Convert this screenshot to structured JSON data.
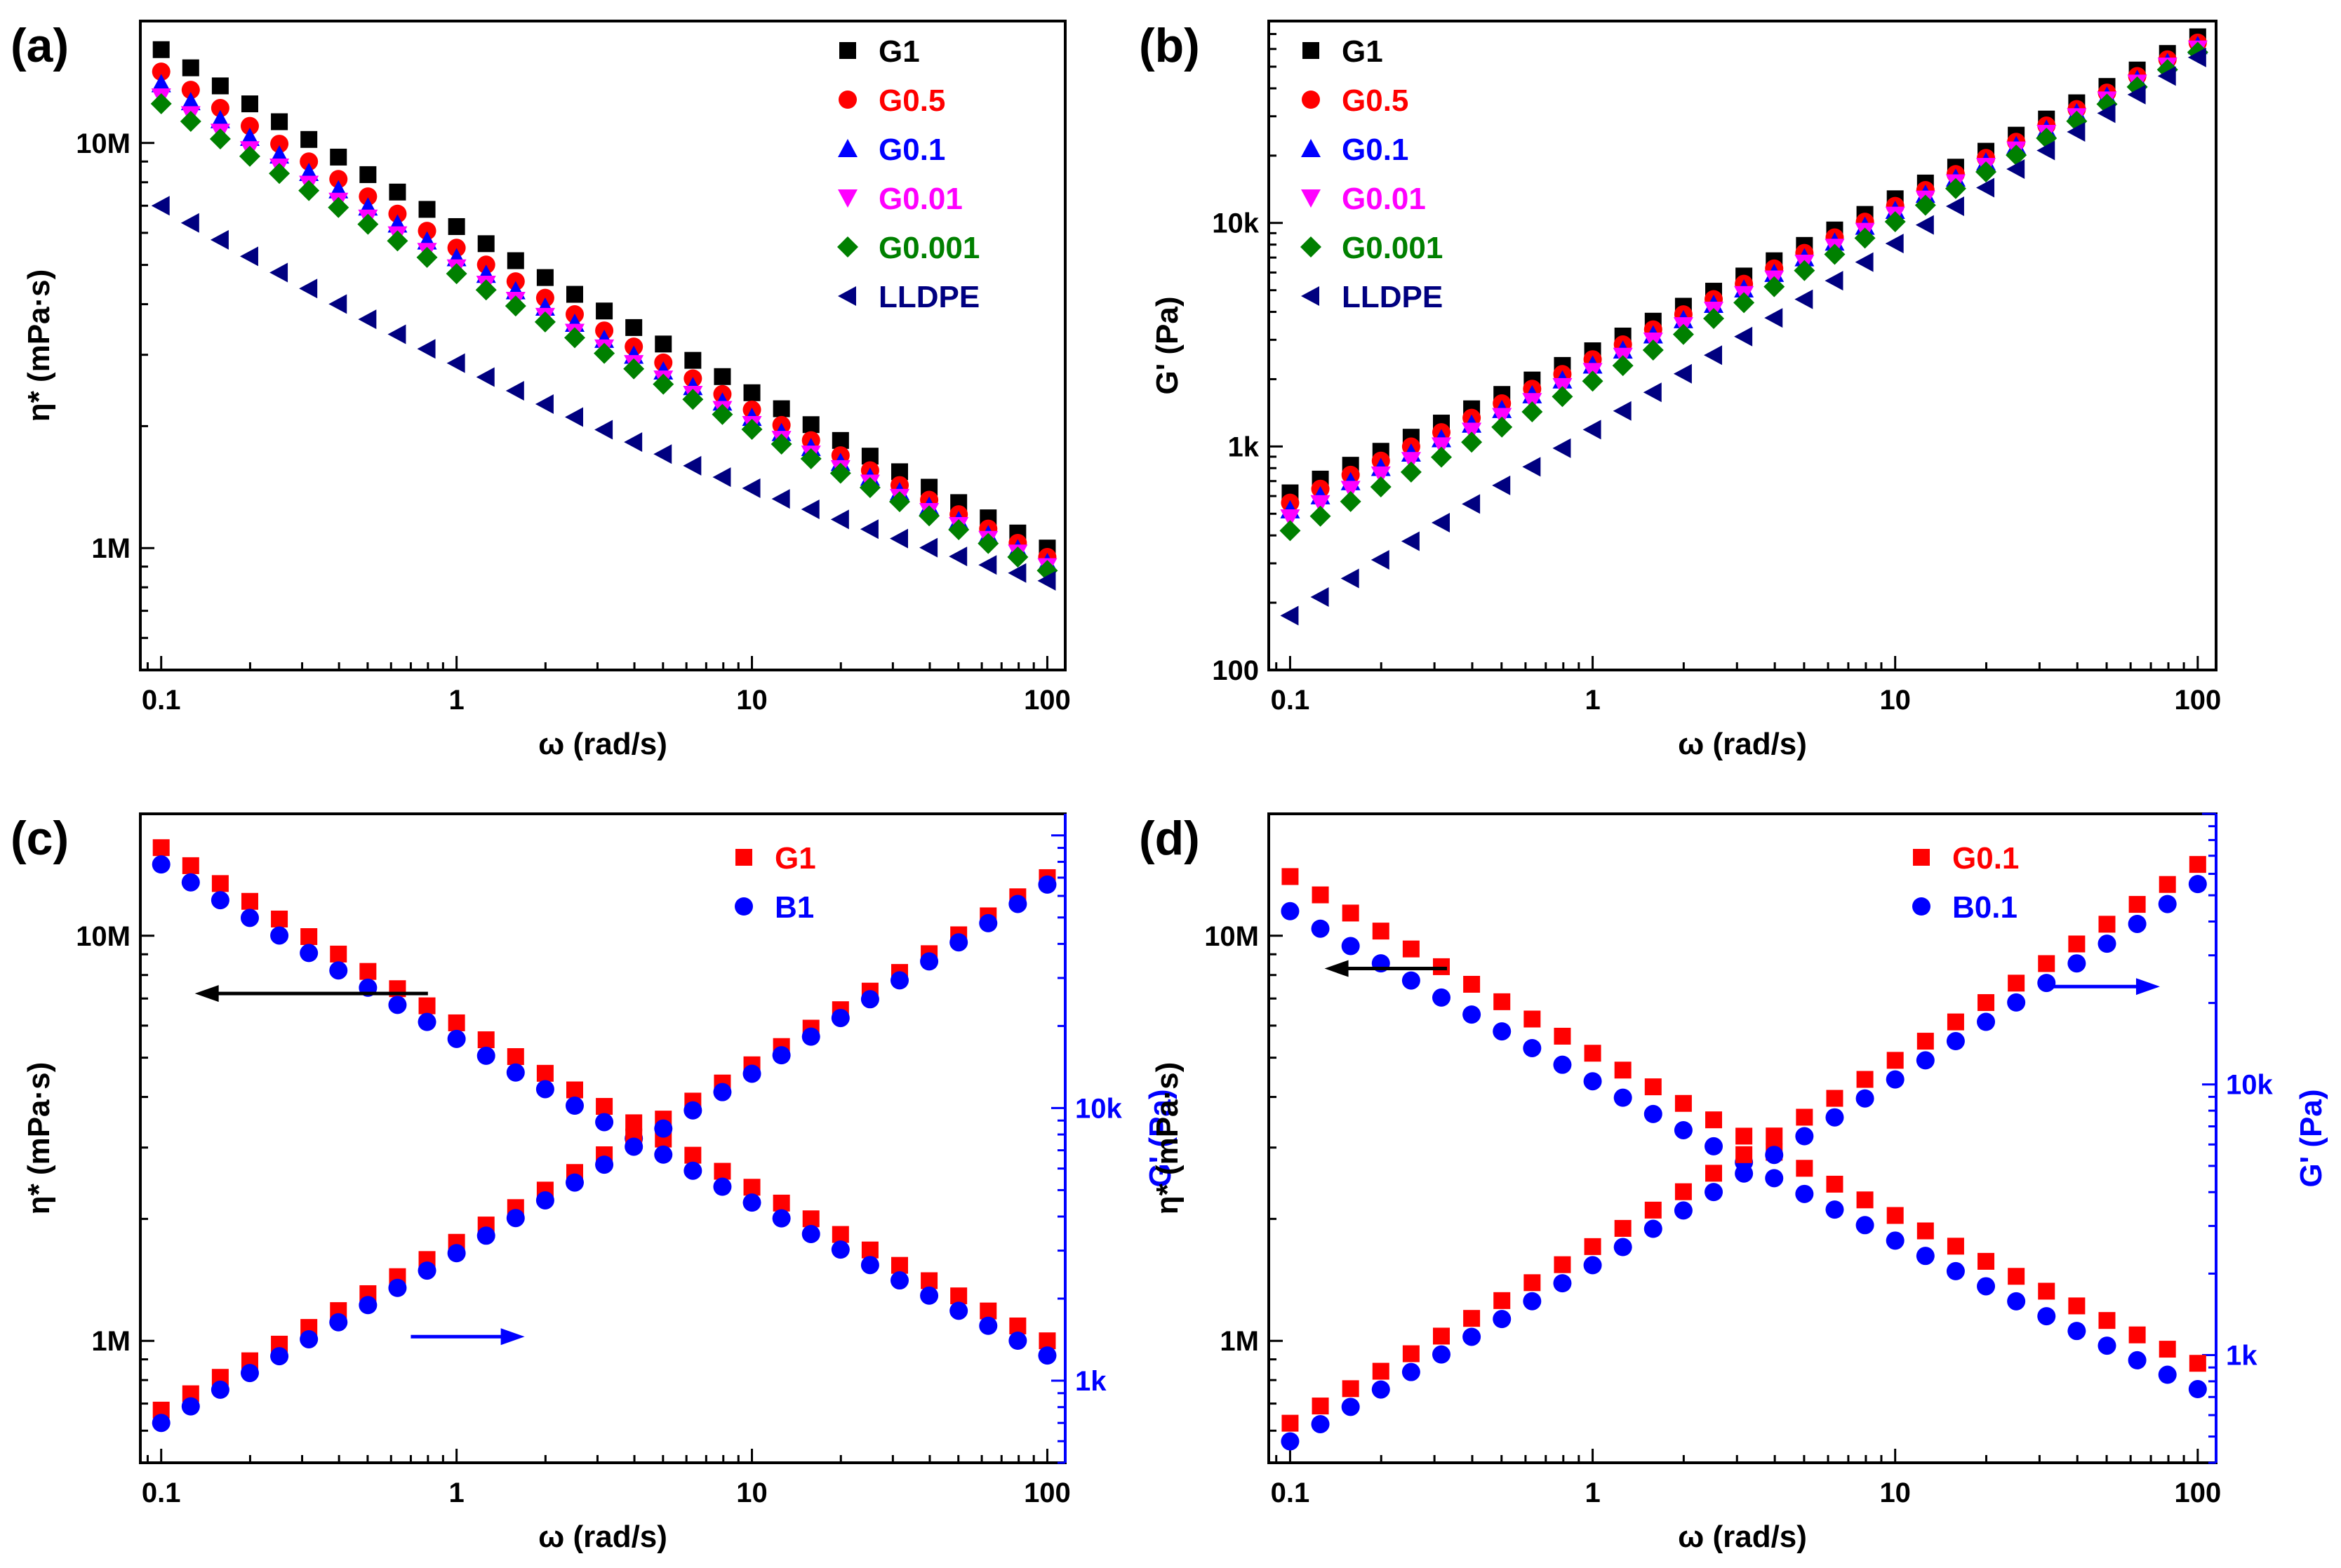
{
  "colors": {
    "G1": "#000000",
    "G0.5": "#ff0000",
    "G0.1": "#0000ff",
    "G0.01": "#ff00ff",
    "G0.001": "#008000",
    "LLDPE": "#000080",
    "red": "#ff0000",
    "blue": "#0000ff"
  },
  "chart_data": [
    {
      "id": "a",
      "type": "scatter",
      "panel_label": "(a)",
      "xlabel": "ω (rad/s)",
      "ylabel": "η* (mPa·s)",
      "xscale": "log",
      "yscale": "log",
      "xlim": [
        0.085,
        115
      ],
      "ylim": [
        500000,
        20000000
      ],
      "xticks": [
        {
          "v": 0.1,
          "label": "0.1"
        },
        {
          "v": 1,
          "label": "1"
        },
        {
          "v": 10,
          "label": "10"
        },
        {
          "v": 100,
          "label": "100"
        }
      ],
      "yticks": [
        {
          "v": 1000000,
          "label": "1M"
        },
        {
          "v": 10000000,
          "label": "10M"
        }
      ],
      "legend": {
        "position": "top-right"
      },
      "series": [
        {
          "name": "G1",
          "color": "#000000",
          "marker": "square",
          "y_start": 17000000,
          "y_end": 1000000,
          "curv": -0.03
        },
        {
          "name": "G0.5",
          "color": "#ff0000",
          "marker": "circle",
          "y_start": 15000000,
          "y_end": 950000,
          "curv": -0.04
        },
        {
          "name": "G0.1",
          "color": "#0000ff",
          "marker": "triangle-up",
          "y_start": 14000000,
          "y_end": 920000,
          "curv": -0.04
        },
        {
          "name": "G0.01",
          "color": "#ff00ff",
          "marker": "triangle-down",
          "y_start": 13000000,
          "y_end": 900000,
          "curv": -0.04
        },
        {
          "name": "G0.001",
          "color": "#008000",
          "marker": "diamond",
          "y_start": 12500000,
          "y_end": 880000,
          "curv": -0.04
        },
        {
          "name": "LLDPE",
          "color": "#000080",
          "marker": "triangle-left",
          "y_start": 7000000,
          "y_end": 830000,
          "curv": -0.09
        }
      ]
    },
    {
      "id": "b",
      "type": "scatter",
      "panel_label": "(b)",
      "xlabel": "ω (rad/s)",
      "ylabel": "G' (Pa)",
      "xscale": "log",
      "yscale": "log",
      "xlim": [
        0.085,
        115
      ],
      "ylim": [
        100,
        80000
      ],
      "xticks": [
        {
          "v": 0.1,
          "label": "0.1"
        },
        {
          "v": 1,
          "label": "1"
        },
        {
          "v": 10,
          "label": "10"
        },
        {
          "v": 100,
          "label": "100"
        }
      ],
      "yticks": [
        {
          "v": 100,
          "label": "100"
        },
        {
          "v": 1000,
          "label": "1k"
        },
        {
          "v": 10000,
          "label": "10k"
        }
      ],
      "legend": {
        "position": "top-left"
      },
      "series": [
        {
          "name": "G1",
          "color": "#000000",
          "marker": "square",
          "y_start": 620,
          "y_end": 68000,
          "curv": -0.05
        },
        {
          "name": "G0.5",
          "color": "#ff0000",
          "marker": "circle",
          "y_start": 560,
          "y_end": 64000,
          "curv": -0.05
        },
        {
          "name": "G0.1",
          "color": "#0000ff",
          "marker": "triangle-up",
          "y_start": 520,
          "y_end": 62000,
          "curv": -0.05
        },
        {
          "name": "G0.01",
          "color": "#ff00ff",
          "marker": "triangle-down",
          "y_start": 480,
          "y_end": 60000,
          "curv": -0.05
        },
        {
          "name": "G0.001",
          "color": "#008000",
          "marker": "diamond",
          "y_start": 420,
          "y_end": 58000,
          "curv": -0.05
        },
        {
          "name": "LLDPE",
          "color": "#000080",
          "marker": "triangle-left",
          "y_start": 175,
          "y_end": 55000,
          "curv": 0.0
        }
      ]
    },
    {
      "id": "c",
      "type": "scatter",
      "panel_label": "(c)",
      "xlabel": "ω (rad/s)",
      "ylabel": "η* (mPa·s)",
      "ylabel2": "G' (Pa)",
      "xscale": "log",
      "yscale": "log",
      "xlim": [
        0.085,
        115
      ],
      "ylim": [
        500000,
        20000000
      ],
      "ylim2": [
        500,
        120000
      ],
      "xticks": [
        {
          "v": 0.1,
          "label": "0.1"
        },
        {
          "v": 1,
          "label": "1"
        },
        {
          "v": 10,
          "label": "10"
        },
        {
          "v": 100,
          "label": "100"
        }
      ],
      "yticks": [
        {
          "v": 1000000,
          "label": "1M"
        },
        {
          "v": 10000000,
          "label": "10M"
        }
      ],
      "yticks2": [
        {
          "v": 1000,
          "label": "1k"
        },
        {
          "v": 10000,
          "label": "10k"
        }
      ],
      "legend": {
        "position": "top-right"
      },
      "arrows": [
        {
          "direction": "left",
          "color": "#000000",
          "x_from": 0.8,
          "x_to": 0.13,
          "y": 7200000,
          "axis": "left"
        },
        {
          "direction": "right",
          "color": "#0000ff",
          "x_from": 0.7,
          "x_to": 1.7,
          "y": 1450,
          "axis": "right"
        }
      ],
      "series": [
        {
          "name": "G1",
          "color": "#ff0000",
          "marker": "square",
          "y_start": 16500000,
          "y_end": 1000000,
          "curv": -0.03,
          "axis": "left"
        },
        {
          "name": "B1",
          "color": "#0000ff",
          "marker": "circle",
          "y_start": 15000000,
          "y_end": 920000,
          "curv": -0.03,
          "axis": "left"
        },
        {
          "name": "G1 G'",
          "legend": false,
          "color": "#ff0000",
          "marker": "square",
          "y_start": 780,
          "y_end": 70000,
          "curv": -0.04,
          "axis": "right"
        },
        {
          "name": "B1 G'",
          "legend": false,
          "color": "#0000ff",
          "marker": "circle",
          "y_start": 700,
          "y_end": 66000,
          "curv": -0.04,
          "axis": "right"
        }
      ],
      "legend_entries": [
        {
          "name": "G1",
          "color": "#ff0000",
          "marker": "square"
        },
        {
          "name": "B1",
          "color": "#0000ff",
          "marker": "circle"
        }
      ]
    },
    {
      "id": "d",
      "type": "scatter",
      "panel_label": "(d)",
      "xlabel": "ω (rad/s)",
      "ylabel": "η* (mPa·s)",
      "ylabel2": "G' (Pa)",
      "xscale": "log",
      "yscale": "log",
      "xlim": [
        0.085,
        115
      ],
      "ylim": [
        500000,
        20000000
      ],
      "ylim2": [
        400,
        100000
      ],
      "xticks": [
        {
          "v": 0.1,
          "label": "0.1"
        },
        {
          "v": 1,
          "label": "1"
        },
        {
          "v": 10,
          "label": "10"
        },
        {
          "v": 100,
          "label": "100"
        }
      ],
      "yticks": [
        {
          "v": 1000000,
          "label": "1M"
        },
        {
          "v": 10000000,
          "label": "10M"
        }
      ],
      "yticks2": [
        {
          "v": 1000,
          "label": "1k"
        },
        {
          "v": 10000,
          "label": "10k"
        }
      ],
      "legend": {
        "position": "top-right"
      },
      "arrows": [
        {
          "direction": "left",
          "color": "#000000",
          "x_from": 0.33,
          "x_to": 0.13,
          "y": 8300000,
          "axis": "left"
        },
        {
          "direction": "right",
          "color": "#0000ff",
          "x_from": 32,
          "x_to": 75,
          "y": 23000,
          "axis": "right"
        }
      ],
      "series": [
        {
          "name": "G0.1",
          "color": "#ff0000",
          "marker": "square",
          "y_start": 14000000,
          "y_end": 880000,
          "curv": -0.04,
          "axis": "left"
        },
        {
          "name": "B0.1",
          "color": "#0000ff",
          "marker": "circle",
          "y_start": 11500000,
          "y_end": 760000,
          "curv": -0.03,
          "axis": "left"
        },
        {
          "name": "G0.1 G'",
          "legend": false,
          "color": "#ff0000",
          "marker": "square",
          "y_start": 560,
          "y_end": 65000,
          "curv": -0.04,
          "axis": "right"
        },
        {
          "name": "B0.1 G'",
          "legend": false,
          "color": "#0000ff",
          "marker": "circle",
          "y_start": 480,
          "y_end": 55000,
          "curv": -0.04,
          "axis": "right"
        }
      ],
      "legend_entries": [
        {
          "name": "G0.1",
          "color": "#ff0000",
          "marker": "square"
        },
        {
          "name": "B0.1",
          "color": "#0000ff",
          "marker": "circle"
        }
      ]
    }
  ]
}
